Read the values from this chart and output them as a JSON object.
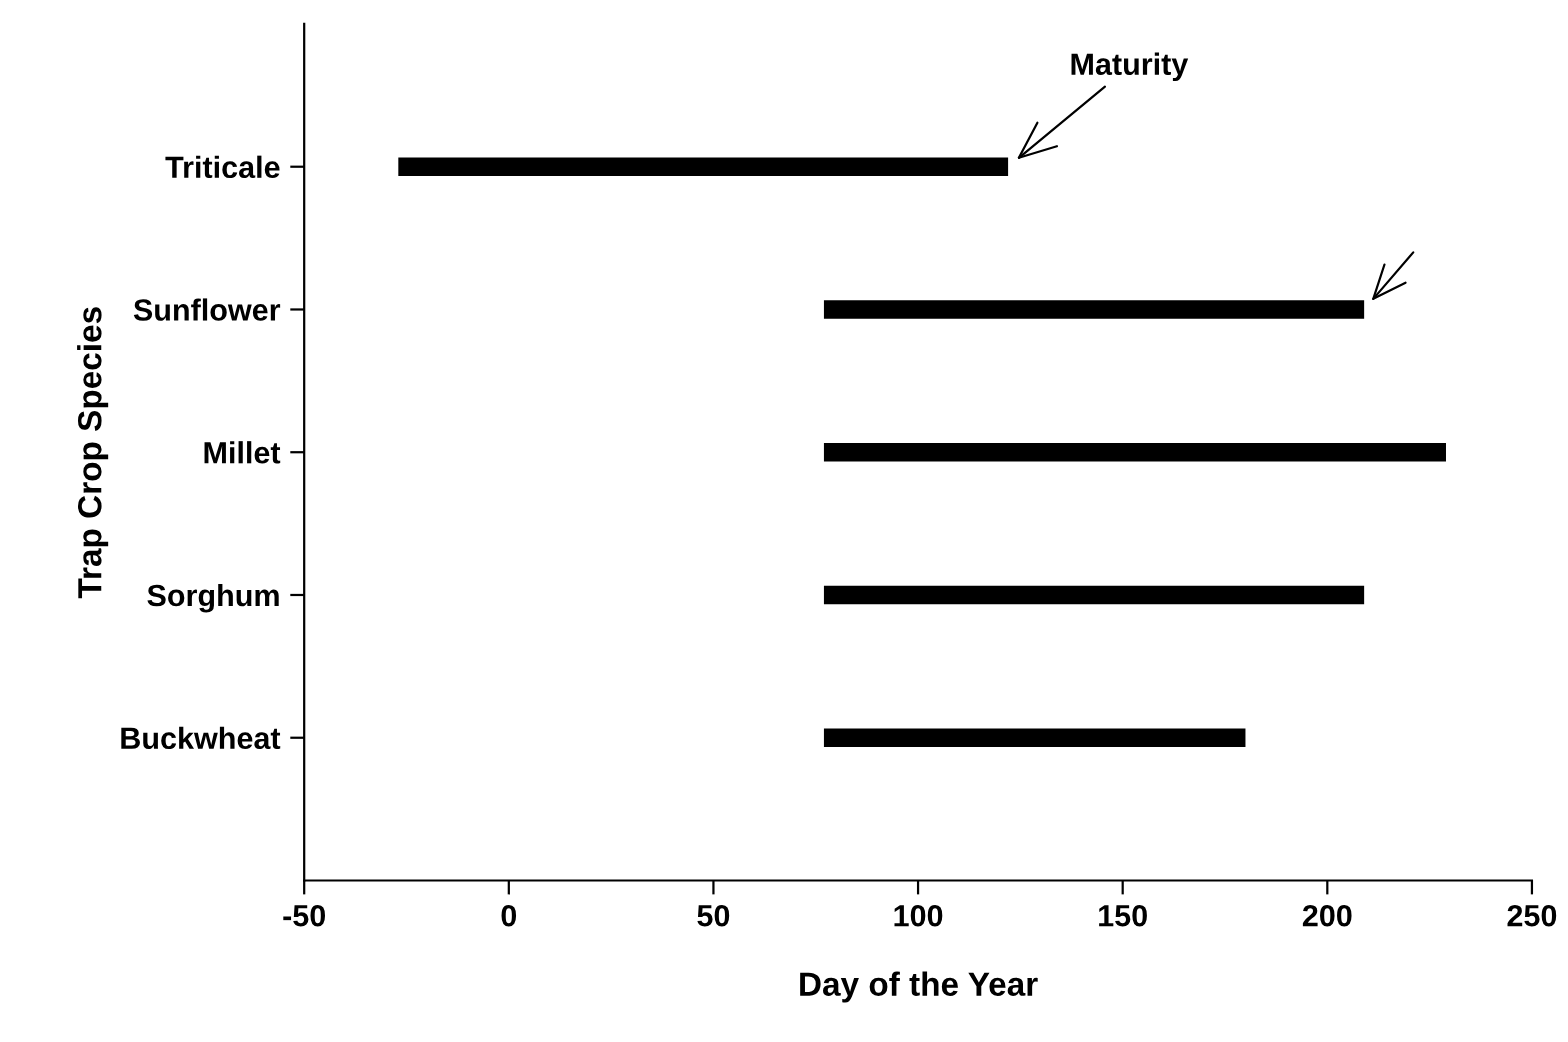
{
  "chart_data": {
    "type": "bar",
    "orientation": "horizontal",
    "xlabel": "Day of the Year",
    "ylabel": "Trap Crop Species",
    "categories": [
      "Triticale",
      "Sunflower",
      "Millet",
      "Sorghum",
      "Buckwheat"
    ],
    "base": [
      -27,
      77,
      77,
      77,
      77
    ],
    "values": [
      149,
      132,
      152,
      132,
      103
    ],
    "color": "#000000",
    "xlim": [
      -50,
      250
    ],
    "xticks": [
      -50,
      0,
      50,
      100,
      150,
      200,
      250
    ],
    "grid": false,
    "legend": false,
    "annotations": [
      {
        "text": "Maturity",
        "x": 122,
        "y": "Triticale"
      }
    ]
  }
}
